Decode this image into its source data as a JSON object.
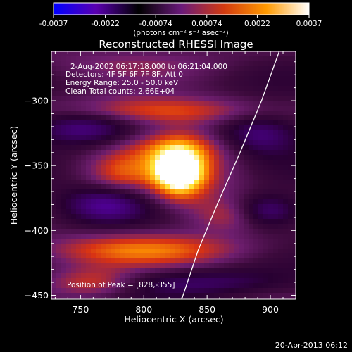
{
  "colorbar": {
    "min": -0.0037,
    "max": 0.0037,
    "tick_labels": [
      "-0.0037",
      "-0.0022",
      "-0.00074",
      "0.00074",
      "0.0022",
      "0.0037"
    ],
    "unit_label": "(photons cm⁻² s⁻¹ asec⁻²)",
    "colors": [
      "#0000ff",
      "#5a00b0",
      "#000000",
      "#6a1a7a",
      "#d23a10",
      "#ff9a00",
      "#ffffff"
    ]
  },
  "chart_data": {
    "type": "heatmap",
    "title": "Reconstructed RHESSI Image",
    "xlabel": "Heliocentric X (arcsec)",
    "ylabel": "Heliocentric Y (arcsec)",
    "xlim": [
      727,
      920
    ],
    "ylim": [
      -453,
      -262
    ],
    "x_ticks": [
      750,
      800,
      850,
      900
    ],
    "y_ticks": [
      -300,
      -350,
      -400,
      -450
    ],
    "x_tick_labels": [
      "750",
      "800",
      "850",
      "900"
    ],
    "y_tick_labels": [
      "−300",
      "−350",
      "−400",
      "−450"
    ],
    "peak": [
      828,
      -355
    ],
    "limb": [
      [
        907,
        -262
      ],
      [
        893,
        -300
      ],
      [
        876,
        -340
      ],
      [
        858,
        -380
      ],
      [
        843,
        -415
      ],
      [
        830,
        -453
      ]
    ],
    "annotations": [
      "2-Aug-2002 06:17:18.000 to 06:21:04.000",
      "Detectors: 4F 5F 6F 7F 8F, Att 0",
      "Energy Range: 25.0 - 50.0 keV",
      "Clean    Total counts: 2.66E+04"
    ],
    "peak_label": "Position of Peak = [828,-355]"
  },
  "footer": {
    "timestamp": "20-Apr-2013 06:12"
  }
}
